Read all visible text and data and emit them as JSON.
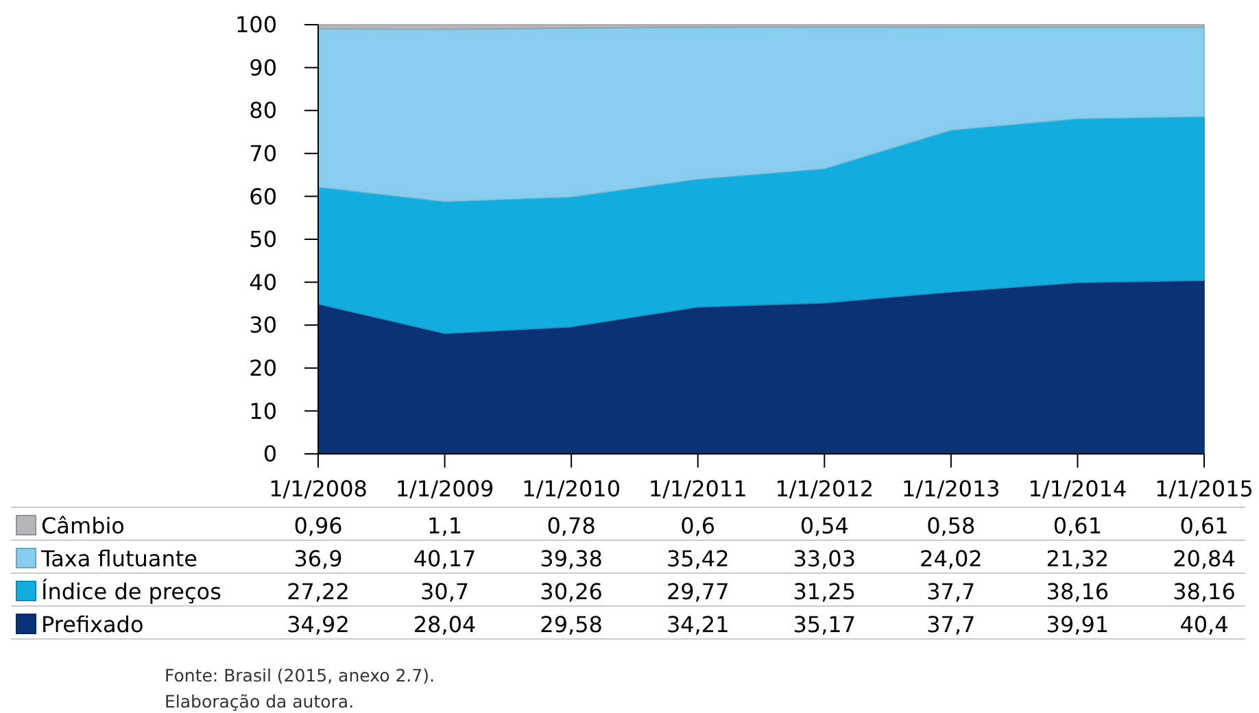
{
  "chart_data": {
    "type": "area",
    "stacked": true,
    "categories": [
      "1/1/2008",
      "1/1/2009",
      "1/1/2010",
      "1/1/2011",
      "1/1/2012",
      "1/1/2013",
      "1/1/2014",
      "1/1/2015"
    ],
    "series": [
      {
        "name": "Prefixado",
        "color": "#0a3175",
        "values": [
          34.92,
          28.04,
          29.58,
          34.21,
          35.17,
          37.7,
          39.91,
          40.4
        ],
        "value_labels": [
          "34,92",
          "28,04",
          "29,58",
          "34,21",
          "35,17",
          "37,7",
          "39,91",
          "40,4"
        ]
      },
      {
        "name": "Índice de preços",
        "color": "#12acdf",
        "values": [
          27.22,
          30.7,
          30.26,
          29.77,
          31.25,
          37.7,
          38.16,
          38.16
        ],
        "value_labels": [
          "27,22",
          "30,7",
          "30,26",
          "29,77",
          "31,25",
          "37,7",
          "38,16",
          "38,16"
        ]
      },
      {
        "name": "Taxa flutuante",
        "color": "#87cdee",
        "values": [
          36.9,
          40.17,
          39.38,
          35.42,
          33.03,
          24.02,
          21.32,
          20.84
        ],
        "value_labels": [
          "36,9",
          "40,17",
          "39,38",
          "35,42",
          "33,03",
          "24,02",
          "21,32",
          "20,84"
        ]
      },
      {
        "name": "Câmbio",
        "color": "#b4b6b9",
        "values": [
          0.96,
          1.1,
          0.78,
          0.6,
          0.54,
          0.58,
          0.61,
          0.61
        ],
        "value_labels": [
          "0,96",
          "1,1",
          "0,78",
          "0,6",
          "0,54",
          "0,58",
          "0,61",
          "0,61"
        ]
      }
    ],
    "ylim": [
      0,
      100
    ],
    "yticks": [
      0,
      10,
      20,
      30,
      40,
      50,
      60,
      70,
      80,
      90,
      100
    ],
    "grid": false,
    "legend": "bottom",
    "annotations": [
      "Fonte: Brasil (2015, anexo 2.7).",
      "Elaboração da autora."
    ]
  }
}
